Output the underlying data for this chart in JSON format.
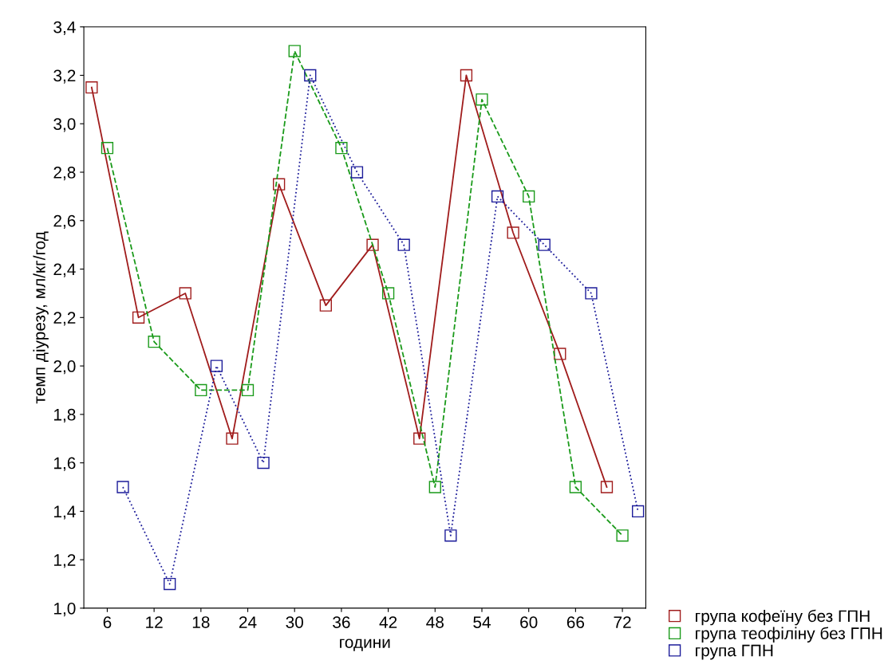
{
  "chart_data": {
    "type": "line",
    "xlabel": "години",
    "ylabel": "темп діурезу, мл/кг/год",
    "xlim": [
      3,
      75
    ],
    "xticks": [
      6,
      12,
      18,
      24,
      30,
      36,
      42,
      48,
      54,
      60,
      66,
      72
    ],
    "ylim": [
      1.0,
      3.4
    ],
    "yticks": [
      {
        "value": 1.0,
        "label": "1,0"
      },
      {
        "value": 1.2,
        "label": "1,2"
      },
      {
        "value": 1.4,
        "label": "1,4"
      },
      {
        "value": 1.6,
        "label": "1,6"
      },
      {
        "value": 1.8,
        "label": "1,8"
      },
      {
        "value": 2.0,
        "label": "2,0"
      },
      {
        "value": 2.2,
        "label": "2,2"
      },
      {
        "value": 2.4,
        "label": "2,4"
      },
      {
        "value": 2.6,
        "label": "2,6"
      },
      {
        "value": 2.8,
        "label": "2,8"
      },
      {
        "value": 3.0,
        "label": "3,0"
      },
      {
        "value": 3.2,
        "label": "3,2"
      },
      {
        "value": 3.4,
        "label": "3,4"
      }
    ],
    "grid": false,
    "legend": "bottom right",
    "marker": "square",
    "series": [
      {
        "name": "група кофеїну без ГПН",
        "color": "#a01c1c",
        "line_style": "solid",
        "x": [
          4,
          10,
          16,
          22,
          28,
          34,
          40,
          46,
          52,
          58,
          64,
          70
        ],
        "values": [
          3.15,
          2.2,
          2.3,
          1.7,
          2.75,
          2.25,
          2.5,
          1.7,
          3.2,
          2.55,
          2.05,
          1.5
        ]
      },
      {
        "name": "група теофіліну без ГПН",
        "color": "#1a9a1a",
        "line_style": "dashed",
        "x": [
          6,
          12,
          18,
          24,
          30,
          36,
          42,
          48,
          54,
          60,
          66,
          72
        ],
        "values": [
          2.9,
          2.1,
          1.9,
          1.9,
          3.3,
          2.9,
          2.3,
          1.5,
          3.1,
          2.7,
          1.5,
          1.3
        ]
      },
      {
        "name": "група ГПН",
        "color": "#1c1c9a",
        "line_style": "dotted",
        "x": [
          8,
          14,
          20,
          26,
          32,
          38,
          44,
          50,
          56,
          62,
          68,
          74
        ],
        "values": [
          1.5,
          1.1,
          2.0,
          1.6,
          3.2,
          2.8,
          2.5,
          1.3,
          2.7,
          2.5,
          2.3,
          1.4
        ]
      }
    ]
  }
}
